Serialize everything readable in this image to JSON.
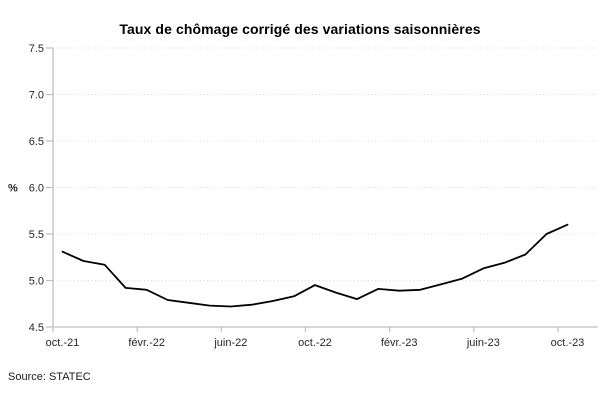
{
  "source": "Source: STATEC",
  "chart_data": {
    "type": "line",
    "title": "Taux de chômage corrigé des variations saisonnières",
    "ylabel": "%",
    "xlabel": "",
    "categories": [
      "oct.-21",
      "nov.-21",
      "déc.-21",
      "janv.-22",
      "févr.-22",
      "mars-22",
      "avr.-22",
      "mai-22",
      "juin-22",
      "juil.-22",
      "août-22",
      "sept.-22",
      "oct.-22",
      "nov.-22",
      "déc.-22",
      "janv.-23",
      "févr.-23",
      "mars-23",
      "avr.-23",
      "mai-23",
      "juin-23",
      "juil.-23",
      "août-23",
      "sept.-23",
      "oct.-23"
    ],
    "values": [
      5.31,
      5.21,
      5.17,
      4.92,
      4.9,
      4.79,
      4.76,
      4.73,
      4.72,
      4.74,
      4.78,
      4.83,
      4.95,
      4.87,
      4.8,
      4.91,
      4.89,
      4.9,
      4.96,
      5.02,
      5.13,
      5.19,
      5.28,
      5.5,
      5.6
    ],
    "x_tick_labels": [
      "oct.-21",
      "févr.-22",
      "juin-22",
      "oct.-22",
      "févr.-23",
      "juin-23",
      "oct.-23"
    ],
    "y_ticks": [
      4.5,
      5.0,
      5.5,
      6.0,
      6.5,
      7.0,
      7.5
    ],
    "y_tick_labels": [
      "4.5",
      "5.0",
      "5.5",
      "6.0",
      "6.5",
      "7.0",
      "7.5"
    ],
    "ylim": [
      4.5,
      7.5
    ],
    "legend": "none",
    "grid": "horizontal-dotted",
    "line_color": "#000000",
    "axis_color": "#bfbfbf",
    "grid_color": "#d9d9d9",
    "text_color": "#262626"
  }
}
